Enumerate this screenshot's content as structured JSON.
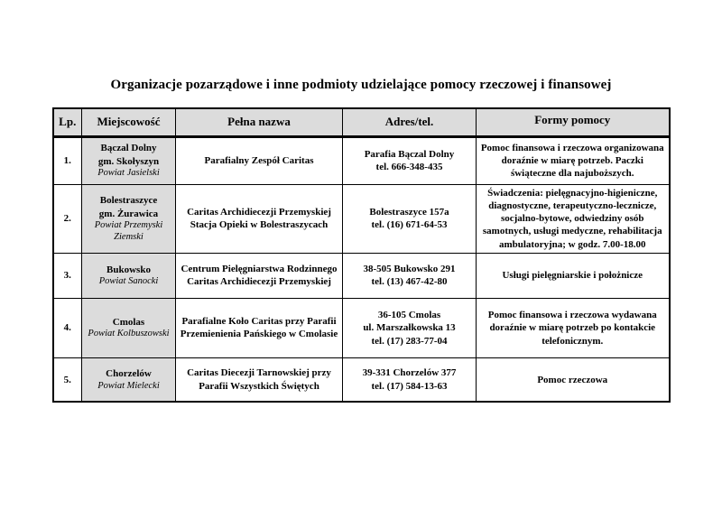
{
  "page": {
    "title": "Organizacje pozarządowe i inne podmioty udzielające pomocy rzeczowej i finansowej"
  },
  "colors": {
    "header_bg": "#dcdcdc",
    "place_column_bg": "#dcdcdc",
    "border": "#000000",
    "text": "#000000"
  },
  "table": {
    "headers": {
      "lp": "Lp.",
      "place": "Miejscowość",
      "name": "Pełna nazwa",
      "address": "Adres/tel.",
      "forms": "Formy pomocy"
    },
    "rows": [
      {
        "lp": "1.",
        "place_lines": [
          "Bączal Dolny",
          "gm. Skołyszyn"
        ],
        "powiat": "Powiat Jasielski",
        "name_lines": [
          "Parafialny Zespół Caritas"
        ],
        "address_lines": [
          "Parafia Bączal Dolny",
          "tel. 666-348-435"
        ],
        "forms": "Pomoc finansowa i rzeczowa organizowana doraźnie w miarę potrzeb. Paczki świąteczne dla najuboższych."
      },
      {
        "lp": "2.",
        "place_lines": [
          "Bolestraszyce",
          "gm. Żurawica"
        ],
        "powiat": "Powiat Przemyski Ziemski",
        "name_lines": [
          "Caritas Archidiecezji Przemyskiej",
          "Stacja Opieki w Bolestraszycach"
        ],
        "address_lines": [
          "Bolestraszyce 157a",
          "tel. (16) 671-64-53"
        ],
        "forms": "Świadczenia: pielęgnacyjno-higieniczne, diagnostyczne, terapeutyczno-lecznicze, socjalno-bytowe, odwiedziny osób samotnych, usługi medyczne, rehabilitacja ambulatoryjna; w godz. 7.00-18.00"
      },
      {
        "lp": "3.",
        "place_lines": [
          "Bukowsko"
        ],
        "powiat": "Powiat Sanocki",
        "name_lines": [
          "Centrum Pielęgniarstwa Rodzinnego",
          "Caritas Archidiecezji Przemyskiej"
        ],
        "address_lines": [
          "38-505 Bukowsko 291",
          "tel. (13) 467-42-80"
        ],
        "forms": "Usługi pielęgniarskie i położnicze"
      },
      {
        "lp": "4.",
        "place_lines": [
          "Cmolas"
        ],
        "powiat": "Powiat Kolbuszowski",
        "name_lines": [
          "Parafialne Koło Caritas przy Parafii",
          "Przemienienia Pańskiego w Cmolasie"
        ],
        "address_lines": [
          "36-105 Cmolas",
          "ul. Marszałkowska 13",
          "tel. (17) 283-77-04"
        ],
        "forms": "Pomoc finansowa i rzeczowa wydawana doraźnie w miarę potrzeb po kontakcie telefonicznym."
      },
      {
        "lp": "5.",
        "place_lines": [
          "Chorzelów"
        ],
        "powiat": "Powiat Mielecki",
        "name_lines": [
          "Caritas Diecezji Tarnowskiej przy",
          "Parafii Wszystkich Świętych"
        ],
        "address_lines": [
          "39-331 Chorzelów 377",
          "tel. (17) 584-13-63"
        ],
        "forms": "Pomoc rzeczowa"
      }
    ]
  }
}
